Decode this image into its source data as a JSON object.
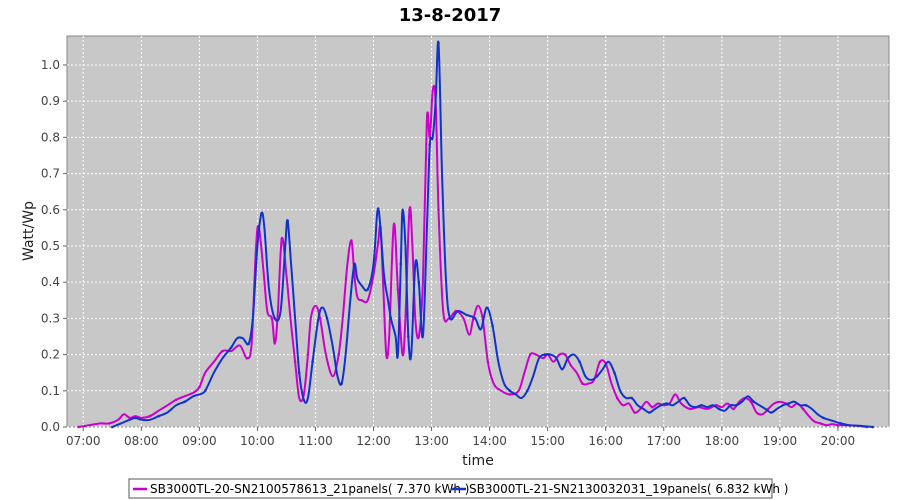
{
  "chart_data": {
    "type": "line",
    "title": "13-8-2017",
    "xlabel": "time",
    "ylabel": "Watt/Wp",
    "xlim": [
      6.72,
      20.88
    ],
    "ylim": [
      0,
      1.08
    ],
    "x_ticks": [
      "07:00",
      "08:00",
      "09:00",
      "10:00",
      "11:00",
      "12:00",
      "13:00",
      "14:00",
      "15:00",
      "16:00",
      "17:00",
      "18:00",
      "19:00",
      "20:00"
    ],
    "y_ticks": [
      "0.0",
      "0.1",
      "0.2",
      "0.3",
      "0.4",
      "0.5",
      "0.6",
      "0.7",
      "0.8",
      "0.9",
      "1.0"
    ],
    "grid": true,
    "legend_position": "bottom",
    "series": [
      {
        "name": "SB3000TL-20-SN2100578613_21panels( 7.370 kWh )",
        "color": "#cc00cc",
        "points": [
          [
            6.92,
            0.0
          ],
          [
            7.1,
            0.005
          ],
          [
            7.3,
            0.01
          ],
          [
            7.45,
            0.01
          ],
          [
            7.6,
            0.02
          ],
          [
            7.7,
            0.035
          ],
          [
            7.8,
            0.025
          ],
          [
            7.9,
            0.03
          ],
          [
            8.0,
            0.025
          ],
          [
            8.15,
            0.03
          ],
          [
            8.3,
            0.045
          ],
          [
            8.45,
            0.06
          ],
          [
            8.6,
            0.075
          ],
          [
            8.75,
            0.085
          ],
          [
            8.9,
            0.095
          ],
          [
            9.0,
            0.11
          ],
          [
            9.1,
            0.15
          ],
          [
            9.25,
            0.18
          ],
          [
            9.4,
            0.21
          ],
          [
            9.55,
            0.21
          ],
          [
            9.7,
            0.225
          ],
          [
            9.82,
            0.19
          ],
          [
            9.9,
            0.23
          ],
          [
            9.97,
            0.48
          ],
          [
            10.02,
            0.555
          ],
          [
            10.1,
            0.44
          ],
          [
            10.17,
            0.32
          ],
          [
            10.25,
            0.3
          ],
          [
            10.3,
            0.23
          ],
          [
            10.35,
            0.31
          ],
          [
            10.42,
            0.52
          ],
          [
            10.5,
            0.42
          ],
          [
            10.57,
            0.3
          ],
          [
            10.65,
            0.18
          ],
          [
            10.72,
            0.08
          ],
          [
            10.8,
            0.09
          ],
          [
            10.87,
            0.2
          ],
          [
            10.92,
            0.3
          ],
          [
            11.0,
            0.335
          ],
          [
            11.08,
            0.3
          ],
          [
            11.18,
            0.2
          ],
          [
            11.3,
            0.14
          ],
          [
            11.4,
            0.2
          ],
          [
            11.47,
            0.3
          ],
          [
            11.55,
            0.45
          ],
          [
            11.62,
            0.515
          ],
          [
            11.67,
            0.42
          ],
          [
            11.72,
            0.36
          ],
          [
            11.8,
            0.35
          ],
          [
            11.9,
            0.35
          ],
          [
            12.0,
            0.42
          ],
          [
            12.08,
            0.51
          ],
          [
            12.12,
            0.55
          ],
          [
            12.17,
            0.38
          ],
          [
            12.22,
            0.2
          ],
          [
            12.27,
            0.25
          ],
          [
            12.35,
            0.56
          ],
          [
            12.42,
            0.38
          ],
          [
            12.5,
            0.2
          ],
          [
            12.55,
            0.3
          ],
          [
            12.62,
            0.6
          ],
          [
            12.67,
            0.5
          ],
          [
            12.72,
            0.3
          ],
          [
            12.78,
            0.25
          ],
          [
            12.85,
            0.4
          ],
          [
            12.92,
            0.85
          ],
          [
            12.97,
            0.8
          ],
          [
            13.02,
            0.93
          ],
          [
            13.07,
            0.9
          ],
          [
            13.12,
            0.6
          ],
          [
            13.2,
            0.32
          ],
          [
            13.3,
            0.3
          ],
          [
            13.42,
            0.32
          ],
          [
            13.55,
            0.3
          ],
          [
            13.65,
            0.255
          ],
          [
            13.72,
            0.3
          ],
          [
            13.8,
            0.335
          ],
          [
            13.88,
            0.3
          ],
          [
            13.97,
            0.18
          ],
          [
            14.07,
            0.12
          ],
          [
            14.2,
            0.1
          ],
          [
            14.35,
            0.09
          ],
          [
            14.5,
            0.1
          ],
          [
            14.6,
            0.15
          ],
          [
            14.7,
            0.2
          ],
          [
            14.8,
            0.2
          ],
          [
            14.92,
            0.19
          ],
          [
            15.0,
            0.2
          ],
          [
            15.1,
            0.18
          ],
          [
            15.2,
            0.2
          ],
          [
            15.3,
            0.2
          ],
          [
            15.4,
            0.17
          ],
          [
            15.5,
            0.15
          ],
          [
            15.6,
            0.12
          ],
          [
            15.7,
            0.12
          ],
          [
            15.8,
            0.13
          ],
          [
            15.9,
            0.18
          ],
          [
            16.0,
            0.175
          ],
          [
            16.1,
            0.12
          ],
          [
            16.2,
            0.08
          ],
          [
            16.3,
            0.06
          ],
          [
            16.4,
            0.065
          ],
          [
            16.5,
            0.04
          ],
          [
            16.6,
            0.05
          ],
          [
            16.7,
            0.07
          ],
          [
            16.8,
            0.055
          ],
          [
            16.9,
            0.065
          ],
          [
            17.0,
            0.06
          ],
          [
            17.1,
            0.065
          ],
          [
            17.2,
            0.09
          ],
          [
            17.3,
            0.065
          ],
          [
            17.45,
            0.05
          ],
          [
            17.6,
            0.055
          ],
          [
            17.75,
            0.05
          ],
          [
            17.9,
            0.06
          ],
          [
            18.0,
            0.055
          ],
          [
            18.1,
            0.065
          ],
          [
            18.2,
            0.05
          ],
          [
            18.3,
            0.07
          ],
          [
            18.4,
            0.08
          ],
          [
            18.5,
            0.07
          ],
          [
            18.6,
            0.04
          ],
          [
            18.7,
            0.035
          ],
          [
            18.8,
            0.05
          ],
          [
            18.9,
            0.065
          ],
          [
            19.0,
            0.07
          ],
          [
            19.1,
            0.065
          ],
          [
            19.2,
            0.055
          ],
          [
            19.3,
            0.065
          ],
          [
            19.4,
            0.05
          ],
          [
            19.5,
            0.03
          ],
          [
            19.6,
            0.015
          ],
          [
            19.7,
            0.01
          ],
          [
            19.8,
            0.005
          ],
          [
            19.9,
            0.008
          ],
          [
            20.0,
            0.005
          ],
          [
            20.1,
            0.005
          ],
          [
            20.3,
            0.004
          ],
          [
            20.5,
            0.0
          ]
        ]
      },
      {
        "name": "SB3000TL-21-SN2130032031_19panels( 6.832 kWh )",
        "color": "#1133cc",
        "points": [
          [
            7.5,
            0.0
          ],
          [
            7.65,
            0.01
          ],
          [
            7.8,
            0.02
          ],
          [
            7.9,
            0.025
          ],
          [
            8.0,
            0.02
          ],
          [
            8.15,
            0.02
          ],
          [
            8.3,
            0.03
          ],
          [
            8.45,
            0.04
          ],
          [
            8.6,
            0.06
          ],
          [
            8.75,
            0.07
          ],
          [
            8.9,
            0.085
          ],
          [
            9.0,
            0.09
          ],
          [
            9.1,
            0.1
          ],
          [
            9.25,
            0.15
          ],
          [
            9.4,
            0.19
          ],
          [
            9.55,
            0.22
          ],
          [
            9.65,
            0.245
          ],
          [
            9.75,
            0.245
          ],
          [
            9.85,
            0.23
          ],
          [
            9.92,
            0.3
          ],
          [
            10.0,
            0.5
          ],
          [
            10.07,
            0.59
          ],
          [
            10.12,
            0.55
          ],
          [
            10.2,
            0.38
          ],
          [
            10.3,
            0.3
          ],
          [
            10.4,
            0.32
          ],
          [
            10.48,
            0.5
          ],
          [
            10.52,
            0.57
          ],
          [
            10.58,
            0.45
          ],
          [
            10.65,
            0.3
          ],
          [
            10.72,
            0.15
          ],
          [
            10.8,
            0.075
          ],
          [
            10.87,
            0.08
          ],
          [
            10.95,
            0.18
          ],
          [
            11.05,
            0.3
          ],
          [
            11.12,
            0.33
          ],
          [
            11.2,
            0.3
          ],
          [
            11.3,
            0.22
          ],
          [
            11.38,
            0.14
          ],
          [
            11.45,
            0.12
          ],
          [
            11.52,
            0.2
          ],
          [
            11.6,
            0.35
          ],
          [
            11.67,
            0.45
          ],
          [
            11.72,
            0.41
          ],
          [
            11.8,
            0.39
          ],
          [
            11.9,
            0.38
          ],
          [
            12.0,
            0.45
          ],
          [
            12.07,
            0.6
          ],
          [
            12.12,
            0.55
          ],
          [
            12.18,
            0.42
          ],
          [
            12.25,
            0.35
          ],
          [
            12.3,
            0.3
          ],
          [
            12.38,
            0.25
          ],
          [
            12.42,
            0.2
          ],
          [
            12.47,
            0.45
          ],
          [
            12.5,
            0.6
          ],
          [
            12.55,
            0.5
          ],
          [
            12.6,
            0.25
          ],
          [
            12.65,
            0.2
          ],
          [
            12.72,
            0.45
          ],
          [
            12.78,
            0.4
          ],
          [
            12.85,
            0.25
          ],
          [
            12.92,
            0.55
          ],
          [
            12.97,
            0.78
          ],
          [
            13.02,
            0.8
          ],
          [
            13.07,
            0.9
          ],
          [
            13.12,
            1.06
          ],
          [
            13.18,
            0.7
          ],
          [
            13.25,
            0.4
          ],
          [
            13.32,
            0.3
          ],
          [
            13.45,
            0.32
          ],
          [
            13.6,
            0.31
          ],
          [
            13.75,
            0.3
          ],
          [
            13.85,
            0.27
          ],
          [
            13.95,
            0.33
          ],
          [
            14.05,
            0.28
          ],
          [
            14.15,
            0.18
          ],
          [
            14.25,
            0.12
          ],
          [
            14.35,
            0.1
          ],
          [
            14.45,
            0.09
          ],
          [
            14.55,
            0.08
          ],
          [
            14.65,
            0.1
          ],
          [
            14.75,
            0.14
          ],
          [
            14.85,
            0.19
          ],
          [
            14.95,
            0.2
          ],
          [
            15.05,
            0.2
          ],
          [
            15.15,
            0.19
          ],
          [
            15.25,
            0.16
          ],
          [
            15.35,
            0.19
          ],
          [
            15.45,
            0.2
          ],
          [
            15.55,
            0.18
          ],
          [
            15.65,
            0.14
          ],
          [
            15.75,
            0.13
          ],
          [
            15.85,
            0.14
          ],
          [
            15.95,
            0.16
          ],
          [
            16.05,
            0.18
          ],
          [
            16.15,
            0.15
          ],
          [
            16.25,
            0.1
          ],
          [
            16.35,
            0.08
          ],
          [
            16.45,
            0.08
          ],
          [
            16.55,
            0.06
          ],
          [
            16.65,
            0.05
          ],
          [
            16.75,
            0.04
          ],
          [
            16.85,
            0.05
          ],
          [
            16.95,
            0.06
          ],
          [
            17.05,
            0.065
          ],
          [
            17.15,
            0.06
          ],
          [
            17.25,
            0.07
          ],
          [
            17.35,
            0.08
          ],
          [
            17.45,
            0.06
          ],
          [
            17.55,
            0.055
          ],
          [
            17.65,
            0.06
          ],
          [
            17.75,
            0.055
          ],
          [
            17.85,
            0.06
          ],
          [
            17.95,
            0.05
          ],
          [
            18.05,
            0.045
          ],
          [
            18.15,
            0.06
          ],
          [
            18.25,
            0.06
          ],
          [
            18.35,
            0.07
          ],
          [
            18.45,
            0.085
          ],
          [
            18.55,
            0.07
          ],
          [
            18.65,
            0.06
          ],
          [
            18.75,
            0.05
          ],
          [
            18.85,
            0.04
          ],
          [
            18.95,
            0.05
          ],
          [
            19.05,
            0.06
          ],
          [
            19.15,
            0.065
          ],
          [
            19.25,
            0.07
          ],
          [
            19.35,
            0.06
          ],
          [
            19.45,
            0.06
          ],
          [
            19.55,
            0.05
          ],
          [
            19.65,
            0.035
          ],
          [
            19.75,
            0.025
          ],
          [
            19.85,
            0.02
          ],
          [
            19.95,
            0.015
          ],
          [
            20.05,
            0.01
          ],
          [
            20.2,
            0.005
          ],
          [
            20.4,
            0.003
          ],
          [
            20.6,
            0.0
          ]
        ]
      }
    ]
  }
}
